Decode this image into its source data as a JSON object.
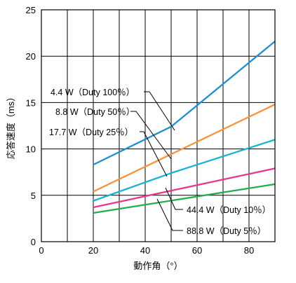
{
  "chart_data": {
    "type": "line",
    "title": "",
    "xlabel": "動作角（°）",
    "ylabel": "応答速度（ms）",
    "xlim": [
      0,
      90
    ],
    "ylim": [
      0,
      25
    ],
    "x_ticks": [
      0,
      20,
      40,
      60,
      80
    ],
    "y_ticks": [
      0,
      5,
      10,
      15,
      20,
      25
    ],
    "x_gridlines": [
      0,
      10,
      20,
      30,
      40,
      50,
      60,
      70,
      80,
      90
    ],
    "y_gridlines": [
      0,
      5,
      10,
      15,
      20,
      25
    ],
    "grid": true,
    "series": [
      {
        "name": "4.4 W（Duty 100％）",
        "color": "#1e8fd0",
        "x": [
          20,
          50,
          90
        ],
        "y": [
          8.3,
          12.4,
          21.6
        ]
      },
      {
        "name": "8.8 W（Duty 50％）",
        "color": "#f7923a",
        "x": [
          20,
          90
        ],
        "y": [
          5.4,
          14.8
        ]
      },
      {
        "name": "17.7 W（Duty 25％）",
        "color": "#17b4d4",
        "x": [
          20,
          50,
          90
        ],
        "y": [
          4.4,
          7.4,
          11.0
        ]
      },
      {
        "name": "44.4 W（Duty 10％）",
        "color": "#e8388c",
        "x": [
          20,
          90
        ],
        "y": [
          3.7,
          7.9
        ]
      },
      {
        "name": "88.8 W（Duty 5％）",
        "color": "#22ad4e",
        "x": [
          20,
          90
        ],
        "y": [
          3.1,
          6.2
        ]
      }
    ],
    "annotations": [
      {
        "series": 0,
        "text": "4.4 W（Duty 100％）"
      },
      {
        "series": 1,
        "text": "8.8 W（Duty 50％）"
      },
      {
        "series": 2,
        "text": "17.7 W（Duty 25％）"
      },
      {
        "series": 3,
        "text": "44.4 W（Duty 10％）"
      },
      {
        "series": 4,
        "text": "88.8 W（Duty 5％）"
      }
    ]
  }
}
